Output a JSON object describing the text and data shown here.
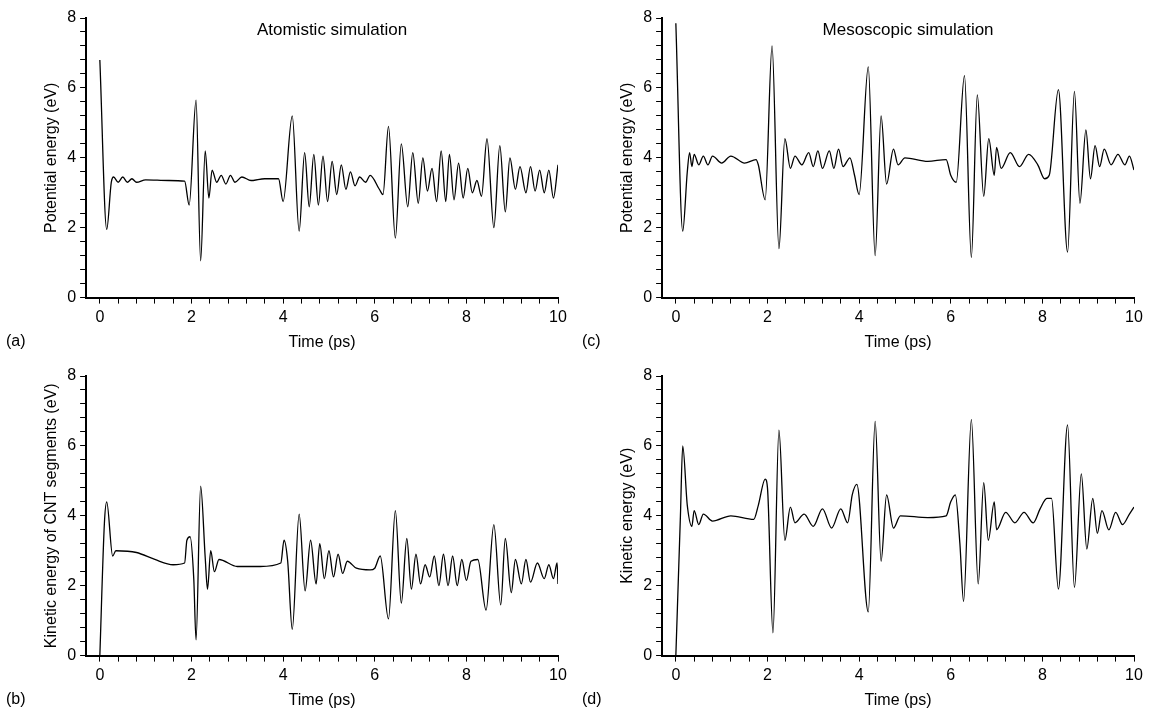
{
  "chart_data": [
    {
      "type": "line",
      "title": "Atomistic simulation",
      "xlabel": "Time (ps)",
      "ylabel": "Potential energy (eV)",
      "annotations": [
        "(a)"
      ],
      "grid": false,
      "marker": "none",
      "line_style": "solid",
      "xlim": [
        -0.3,
        10
      ],
      "ylim": [
        0,
        8
      ],
      "xticks": [
        0,
        {
          "value": 0.4,
          "label": null
        },
        {
          "value": 0.8,
          "label": null
        },
        {
          "value": 1.2,
          "label": null
        },
        {
          "value": 1.6,
          "label": null
        },
        2,
        {
          "value": 2.4,
          "label": null
        },
        {
          "value": 2.8,
          "label": null
        },
        {
          "value": 3.2,
          "label": null
        },
        {
          "value": 3.6,
          "label": null
        },
        4,
        {
          "value": 4.4,
          "label": null
        },
        {
          "value": 4.8,
          "label": null
        },
        {
          "value": 5.2,
          "label": null
        },
        {
          "value": 5.6,
          "label": null
        },
        6,
        {
          "value": 6.4,
          "label": null
        },
        {
          "value": 6.8,
          "label": null
        },
        {
          "value": 7.2,
          "label": null
        },
        {
          "value": 7.6,
          "label": null
        },
        8,
        {
          "value": 8.4,
          "label": null
        },
        {
          "value": 8.8,
          "label": null
        },
        {
          "value": 9.2,
          "label": null
        },
        {
          "value": 9.6,
          "label": null
        },
        10
      ],
      "yticks": [
        0,
        {
          "value": 0.4,
          "label": null
        },
        {
          "value": 0.8,
          "label": null
        },
        {
          "value": 1.2,
          "label": null
        },
        {
          "value": 1.6,
          "label": null
        },
        2,
        {
          "value": 2.4,
          "label": null
        },
        {
          "value": 2.8,
          "label": null
        },
        {
          "value": 3.2,
          "label": null
        },
        {
          "value": 3.6,
          "label": null
        },
        4,
        {
          "value": 4.4,
          "label": null
        },
        {
          "value": 4.8,
          "label": null
        },
        {
          "value": 5.2,
          "label": null
        },
        {
          "value": 5.6,
          "label": null
        },
        6,
        {
          "value": 6.4,
          "label": null
        },
        {
          "value": 6.8,
          "label": null
        },
        {
          "value": 7.2,
          "label": null
        },
        {
          "value": 7.6,
          "label": null
        },
        8
      ],
      "x": [
        0,
        0.15,
        0.25,
        0.3,
        0.4,
        0.5,
        0.6,
        0.7,
        0.8,
        1.0,
        1.5,
        1.85,
        1.95,
        2.1,
        2.2,
        2.3,
        2.38,
        2.45,
        2.55,
        2.65,
        2.75,
        2.85,
        2.95,
        3.1,
        3.3,
        3.6,
        3.9,
        4.0,
        4.2,
        4.35,
        4.47,
        4.57,
        4.67,
        4.77,
        4.87,
        4.97,
        5.07,
        5.17,
        5.27,
        5.37,
        5.47,
        5.57,
        5.67,
        5.8,
        5.9,
        6.1,
        6.18,
        6.3,
        6.45,
        6.58,
        6.72,
        6.83,
        6.95,
        7.05,
        7.15,
        7.25,
        7.35,
        7.45,
        7.55,
        7.63,
        7.73,
        7.83,
        7.93,
        8.03,
        8.13,
        8.23,
        8.33,
        8.45,
        8.6,
        8.73,
        8.85,
        8.95,
        9.07,
        9.17,
        9.3,
        9.4,
        9.5,
        9.6,
        9.7,
        9.8,
        9.9,
        10
      ],
      "series": [
        {
          "color": "#000000",
          "values": [
            6.8,
            1.95,
            3.3,
            3.45,
            3.3,
            3.45,
            3.3,
            3.4,
            3.3,
            3.37,
            3.35,
            3.33,
            2.65,
            5.65,
            1.05,
            4.2,
            2.85,
            3.65,
            3.3,
            3.5,
            3.25,
            3.5,
            3.3,
            3.45,
            3.35,
            3.4,
            3.4,
            2.75,
            5.2,
            1.9,
            4.15,
            2.6,
            4.1,
            2.65,
            4.05,
            2.75,
            3.9,
            2.95,
            3.8,
            3.1,
            3.6,
            3.2,
            3.45,
            3.3,
            3.5,
            3.1,
            2.95,
            4.9,
            1.7,
            4.4,
            2.6,
            4.15,
            2.7,
            4.0,
            3.05,
            3.7,
            2.75,
            4.2,
            2.75,
            4.1,
            2.8,
            3.85,
            2.85,
            3.7,
            3.0,
            3.35,
            2.9,
            4.55,
            2.0,
            4.35,
            2.45,
            4.0,
            3.1,
            3.75,
            3.0,
            3.75,
            3.05,
            3.65,
            3.0,
            3.65,
            2.85,
            3.8
          ]
        }
      ]
    },
    {
      "type": "line",
      "title": "Mesoscopic simulation",
      "xlabel": "Time (ps)",
      "ylabel": "Potential energy (eV)",
      "annotations": [
        "(c)"
      ],
      "grid": false,
      "marker": "none",
      "line_style": "solid",
      "xlim": [
        -0.3,
        10
      ],
      "ylim": [
        0,
        8
      ],
      "xticks": [
        0,
        {
          "value": 0.4,
          "label": null
        },
        {
          "value": 0.8,
          "label": null
        },
        {
          "value": 1.2,
          "label": null
        },
        {
          "value": 1.6,
          "label": null
        },
        2,
        {
          "value": 2.4,
          "label": null
        },
        {
          "value": 2.8,
          "label": null
        },
        {
          "value": 3.2,
          "label": null
        },
        {
          "value": 3.6,
          "label": null
        },
        4,
        {
          "value": 4.4,
          "label": null
        },
        {
          "value": 4.8,
          "label": null
        },
        {
          "value": 5.2,
          "label": null
        },
        {
          "value": 5.6,
          "label": null
        },
        6,
        {
          "value": 6.4,
          "label": null
        },
        {
          "value": 6.8,
          "label": null
        },
        {
          "value": 7.2,
          "label": null
        },
        {
          "value": 7.6,
          "label": null
        },
        8,
        {
          "value": 8.4,
          "label": null
        },
        {
          "value": 8.8,
          "label": null
        },
        {
          "value": 9.2,
          "label": null
        },
        {
          "value": 9.6,
          "label": null
        },
        10
      ],
      "yticks": [
        0,
        {
          "value": 0.4,
          "label": null
        },
        {
          "value": 0.8,
          "label": null
        },
        {
          "value": 1.2,
          "label": null
        },
        {
          "value": 1.6,
          "label": null
        },
        2,
        {
          "value": 2.4,
          "label": null
        },
        {
          "value": 2.8,
          "label": null
        },
        {
          "value": 3.2,
          "label": null
        },
        {
          "value": 3.6,
          "label": null
        },
        4,
        {
          "value": 4.4,
          "label": null
        },
        {
          "value": 4.8,
          "label": null
        },
        {
          "value": 5.2,
          "label": null
        },
        {
          "value": 5.6,
          "label": null
        },
        6,
        {
          "value": 6.4,
          "label": null
        },
        {
          "value": 6.8,
          "label": null
        },
        {
          "value": 7.2,
          "label": null
        },
        {
          "value": 7.6,
          "label": null
        },
        8
      ],
      "x": [
        0,
        0.15,
        0.25,
        0.3,
        0.35,
        0.4,
        0.5,
        0.6,
        0.7,
        0.8,
        1.0,
        1.2,
        1.5,
        1.75,
        1.8,
        1.95,
        2.1,
        2.25,
        2.38,
        2.5,
        2.6,
        2.75,
        2.9,
        3.0,
        3.1,
        3.2,
        3.35,
        3.45,
        3.55,
        3.65,
        3.8,
        3.9,
        4.0,
        4.2,
        4.35,
        4.48,
        4.6,
        4.75,
        4.85,
        5.0,
        5.5,
        5.9,
        6.0,
        6.12,
        6.3,
        6.45,
        6.58,
        6.72,
        6.83,
        6.95,
        7.0,
        7.1,
        7.3,
        7.5,
        7.7,
        7.9,
        8.05,
        8.15,
        8.35,
        8.55,
        8.7,
        8.82,
        8.95,
        9.05,
        9.15,
        9.25,
        9.35,
        9.5,
        9.65,
        9.8,
        9.9,
        10
      ],
      "series": [
        {
          "color": "#000000",
          "values": [
            7.85,
            1.9,
            3.6,
            4.15,
            3.75,
            4.1,
            3.8,
            4.05,
            3.8,
            4.05,
            3.85,
            4.05,
            3.85,
            3.95,
            3.8,
            2.8,
            7.2,
            1.4,
            4.55,
            3.7,
            4.05,
            3.8,
            4.15,
            3.75,
            4.2,
            3.7,
            4.2,
            3.7,
            4.25,
            3.75,
            4.0,
            3.5,
            2.95,
            6.6,
            1.2,
            5.2,
            3.25,
            4.25,
            3.8,
            4.0,
            3.9,
            3.95,
            3.5,
            3.3,
            6.35,
            1.15,
            5.8,
            2.9,
            4.55,
            3.5,
            4.3,
            3.7,
            4.15,
            3.75,
            4.1,
            3.8,
            3.4,
            3.5,
            5.95,
            1.3,
            5.9,
            2.7,
            4.8,
            3.4,
            4.35,
            3.75,
            4.25,
            3.8,
            4.1,
            3.8,
            4.05,
            3.65
          ]
        }
      ]
    },
    {
      "type": "line",
      "xlabel": "Time (ps)",
      "ylabel": "Kinetic energy of CNT segments (eV)",
      "annotations": [
        "(b)"
      ],
      "grid": false,
      "marker": "none",
      "line_style": "solid",
      "xlim": [
        -0.3,
        10
      ],
      "ylim": [
        0,
        8
      ],
      "xticks": [
        0,
        {
          "value": 0.4,
          "label": null
        },
        {
          "value": 0.8,
          "label": null
        },
        {
          "value": 1.2,
          "label": null
        },
        {
          "value": 1.6,
          "label": null
        },
        2,
        {
          "value": 2.4,
          "label": null
        },
        {
          "value": 2.8,
          "label": null
        },
        {
          "value": 3.2,
          "label": null
        },
        {
          "value": 3.6,
          "label": null
        },
        4,
        {
          "value": 4.4,
          "label": null
        },
        {
          "value": 4.8,
          "label": null
        },
        {
          "value": 5.2,
          "label": null
        },
        {
          "value": 5.6,
          "label": null
        },
        6,
        {
          "value": 6.4,
          "label": null
        },
        {
          "value": 6.8,
          "label": null
        },
        {
          "value": 7.2,
          "label": null
        },
        {
          "value": 7.6,
          "label": null
        },
        8,
        {
          "value": 8.4,
          "label": null
        },
        {
          "value": 8.8,
          "label": null
        },
        {
          "value": 9.2,
          "label": null
        },
        {
          "value": 9.6,
          "label": null
        },
        10
      ],
      "yticks": [
        0,
        {
          "value": 0.4,
          "label": null
        },
        {
          "value": 0.8,
          "label": null
        },
        {
          "value": 1.2,
          "label": null
        },
        {
          "value": 1.6,
          "label": null
        },
        2,
        {
          "value": 2.4,
          "label": null
        },
        {
          "value": 2.8,
          "label": null
        },
        {
          "value": 3.2,
          "label": null
        },
        {
          "value": 3.6,
          "label": null
        },
        4,
        {
          "value": 4.4,
          "label": null
        },
        {
          "value": 4.8,
          "label": null
        },
        {
          "value": 5.2,
          "label": null
        },
        {
          "value": 5.6,
          "label": null
        },
        6,
        {
          "value": 6.4,
          "label": null
        },
        {
          "value": 6.8,
          "label": null
        },
        {
          "value": 7.2,
          "label": null
        },
        {
          "value": 7.6,
          "label": null
        },
        8
      ],
      "x": [
        0,
        0.1,
        0.15,
        0.28,
        0.35,
        0.8,
        1.2,
        1.6,
        1.85,
        1.9,
        1.97,
        2.05,
        2.1,
        2.2,
        2.3,
        2.35,
        2.42,
        2.5,
        2.6,
        3.0,
        3.5,
        3.95,
        4.02,
        4.1,
        4.2,
        4.35,
        4.48,
        4.6,
        4.72,
        4.8,
        4.9,
        5.0,
        5.1,
        5.2,
        5.3,
        5.4,
        5.6,
        5.9,
        6.0,
        6.12,
        6.3,
        6.45,
        6.58,
        6.7,
        6.8,
        6.9,
        7.0,
        7.1,
        7.2,
        7.3,
        7.4,
        7.5,
        7.6,
        7.7,
        7.8,
        7.9,
        8.0,
        8.1,
        8.25,
        8.43,
        8.6,
        8.75,
        8.85,
        8.98,
        9.07,
        9.2,
        9.3,
        9.4,
        9.55,
        9.7,
        9.8,
        9.9,
        9.98,
        10
      ],
      "series": [
        {
          "color": "#000000",
          "values": [
            0,
            3.8,
            4.4,
            2.85,
            3.0,
            2.95,
            2.75,
            2.6,
            2.65,
            3.3,
            3.4,
            2.2,
            0.45,
            4.85,
            2.8,
            1.9,
            3.0,
            2.4,
            2.75,
            2.55,
            2.55,
            2.65,
            3.3,
            2.7,
            0.75,
            4.05,
            1.85,
            3.3,
            2.05,
            3.2,
            2.2,
            3.0,
            2.25,
            2.9,
            2.35,
            2.7,
            2.5,
            2.45,
            2.5,
            2.85,
            1.05,
            4.15,
            1.5,
            3.35,
            1.9,
            2.9,
            2.05,
            2.6,
            2.25,
            2.85,
            2.0,
            2.9,
            2.0,
            2.85,
            2.0,
            2.75,
            2.15,
            2.7,
            2.75,
            1.3,
            3.75,
            1.45,
            3.35,
            1.8,
            2.75,
            2.05,
            2.75,
            2.1,
            2.65,
            2.2,
            2.6,
            2.2,
            2.65,
            2.05
          ]
        }
      ]
    },
    {
      "type": "line",
      "xlabel": "Time (ps)",
      "ylabel": "Kinetic energy (eV)",
      "annotations": [
        "(d)"
      ],
      "grid": false,
      "marker": "none",
      "line_style": "solid",
      "xlim": [
        -0.3,
        10
      ],
      "ylim": [
        0,
        8
      ],
      "xticks": [
        0,
        {
          "value": 0.4,
          "label": null
        },
        {
          "value": 0.8,
          "label": null
        },
        {
          "value": 1.2,
          "label": null
        },
        {
          "value": 1.6,
          "label": null
        },
        2,
        {
          "value": 2.4,
          "label": null
        },
        {
          "value": 2.8,
          "label": null
        },
        {
          "value": 3.2,
          "label": null
        },
        {
          "value": 3.6,
          "label": null
        },
        4,
        {
          "value": 4.4,
          "label": null
        },
        {
          "value": 4.8,
          "label": null
        },
        {
          "value": 5.2,
          "label": null
        },
        {
          "value": 5.6,
          "label": null
        },
        6,
        {
          "value": 6.4,
          "label": null
        },
        {
          "value": 6.8,
          "label": null
        },
        {
          "value": 7.2,
          "label": null
        },
        {
          "value": 7.6,
          "label": null
        },
        8,
        {
          "value": 8.4,
          "label": null
        },
        {
          "value": 8.8,
          "label": null
        },
        {
          "value": 9.2,
          "label": null
        },
        {
          "value": 9.6,
          "label": null
        },
        10
      ],
      "yticks": [
        0,
        {
          "value": 0.4,
          "label": null
        },
        {
          "value": 0.8,
          "label": null
        },
        {
          "value": 1.2,
          "label": null
        },
        {
          "value": 1.6,
          "label": null
        },
        2,
        {
          "value": 2.4,
          "label": null
        },
        {
          "value": 2.8,
          "label": null
        },
        {
          "value": 3.2,
          "label": null
        },
        {
          "value": 3.6,
          "label": null
        },
        4,
        {
          "value": 4.4,
          "label": null
        },
        {
          "value": 4.8,
          "label": null
        },
        {
          "value": 5.2,
          "label": null
        },
        {
          "value": 5.6,
          "label": null
        },
        6,
        {
          "value": 6.4,
          "label": null
        },
        {
          "value": 6.8,
          "label": null
        },
        {
          "value": 7.2,
          "label": null
        },
        {
          "value": 7.6,
          "label": null
        },
        8
      ],
      "x": [
        0,
        0.1,
        0.15,
        0.25,
        0.35,
        0.4,
        0.5,
        0.6,
        0.8,
        1.2,
        1.7,
        1.8,
        1.95,
        2.0,
        2.12,
        2.25,
        2.38,
        2.5,
        2.6,
        2.8,
        3.0,
        3.2,
        3.4,
        3.6,
        3.75,
        3.85,
        3.95,
        4.2,
        4.35,
        4.48,
        4.6,
        4.75,
        4.9,
        5.5,
        5.9,
        6.0,
        6.1,
        6.2,
        6.28,
        6.45,
        6.6,
        6.72,
        6.82,
        6.95,
        7.0,
        7.2,
        7.4,
        7.6,
        7.8,
        7.95,
        8.1,
        8.2,
        8.35,
        8.55,
        8.7,
        8.85,
        8.97,
        9.1,
        9.2,
        9.3,
        9.45,
        9.6,
        9.75,
        9.9,
        10
      ],
      "series": [
        {
          "color": "#000000",
          "values": [
            0,
            4.0,
            6.0,
            4.3,
            3.7,
            4.15,
            3.75,
            4.05,
            3.85,
            4.0,
            3.9,
            4.3,
            5.05,
            4.8,
            0.65,
            6.45,
            3.3,
            4.25,
            3.8,
            4.05,
            3.7,
            4.2,
            3.65,
            4.2,
            3.8,
            4.6,
            4.9,
            1.25,
            6.7,
            2.7,
            4.6,
            3.65,
            4.0,
            3.95,
            4.0,
            4.4,
            4.6,
            3.2,
            1.55,
            6.75,
            2.05,
            4.95,
            3.3,
            4.4,
            3.6,
            4.1,
            3.8,
            4.1,
            3.8,
            4.2,
            4.5,
            4.5,
            1.9,
            6.6,
            1.95,
            5.2,
            3.05,
            4.5,
            3.5,
            4.15,
            3.6,
            4.1,
            3.75,
            4.05,
            4.25
          ]
        }
      ]
    }
  ]
}
